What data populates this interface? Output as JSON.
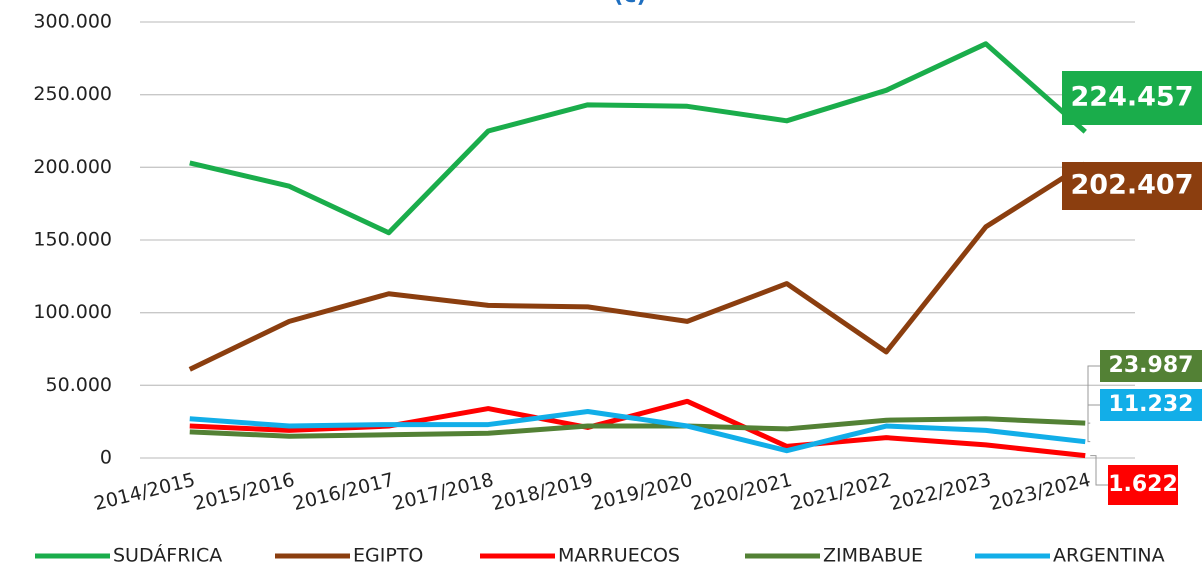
{
  "chart_data": {
    "type": "line",
    "title": "(c)",
    "categories": [
      "2014/2015",
      "2015/2016",
      "2016/2017",
      "2017/2018",
      "2018/2019",
      "2019/2020",
      "2020/2021",
      "2021/2022",
      "2022/2023",
      "2023/2024"
    ],
    "ylim": [
      0,
      300000
    ],
    "yticks": [
      0,
      {
        "value": 50000,
        "label": "50.000"
      },
      {
        "value": 100000,
        "label": "100.000"
      },
      {
        "value": 150000,
        "label": "150.000"
      },
      {
        "value": 200000,
        "label": "200.000"
      },
      {
        "value": 250000,
        "label": "250.000"
      },
      {
        "value": 300000,
        "label": "300.000"
      }
    ],
    "grid": true,
    "series": [
      {
        "name": "SUDÁFRICA",
        "color": "#1aad4b",
        "values": [
          203000,
          187000,
          155000,
          225000,
          243000,
          242000,
          232000,
          253000,
          285000,
          224457
        ],
        "value_labels": [
          null,
          null,
          null,
          null,
          null,
          null,
          null,
          null,
          null,
          "224.457"
        ]
      },
      {
        "name": "EGIPTO",
        "color": "#8b3e0f",
        "values": [
          61000,
          94000,
          113000,
          105000,
          104000,
          94000,
          120000,
          73000,
          159000,
          202407
        ],
        "value_labels": [
          null,
          null,
          null,
          null,
          null,
          null,
          null,
          null,
          null,
          "202.407"
        ]
      },
      {
        "name": "MARRUECOS",
        "color": "#ff0000",
        "values": [
          22000,
          19000,
          22000,
          34000,
          21000,
          39000,
          8000,
          14000,
          9000,
          1622
        ],
        "value_labels": [
          null,
          null,
          null,
          null,
          null,
          null,
          null,
          null,
          null,
          "1.622"
        ]
      },
      {
        "name": "ZIMBABUE",
        "color": "#538135",
        "values": [
          18000,
          15000,
          16000,
          17000,
          22000,
          22000,
          20000,
          26000,
          27000,
          23987
        ],
        "value_labels": [
          null,
          null,
          null,
          null,
          null,
          null,
          null,
          null,
          null,
          "23.987"
        ]
      },
      {
        "name": "ARGENTINA",
        "color": "#12aee8",
        "values": [
          27000,
          22000,
          23000,
          23000,
          32000,
          22000,
          5000,
          22000,
          19000,
          11232
        ],
        "value_labels": [
          null,
          null,
          null,
          null,
          null,
          null,
          null,
          null,
          null,
          "11.232"
        ]
      }
    ]
  }
}
